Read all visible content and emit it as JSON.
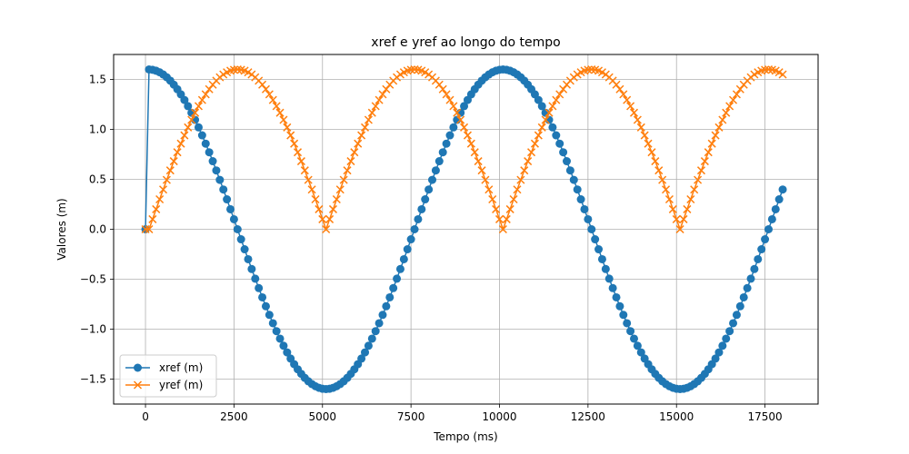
{
  "chart_data": {
    "type": "line",
    "title": "xref e yref ao longo do tempo",
    "xlabel": "Tempo (ms)",
    "ylabel": "Valores (m)",
    "xlim": [
      -900,
      19000
    ],
    "ylim": [
      -1.75,
      1.75
    ],
    "xticks": [
      0,
      2500,
      5000,
      7500,
      10000,
      12500,
      15000,
      17500
    ],
    "xtick_labels": [
      "0",
      "2500",
      "5000",
      "7500",
      "10000",
      "12500",
      "15000",
      "17500"
    ],
    "yticks": [
      -1.5,
      -1.0,
      -0.5,
      0.0,
      0.5,
      1.0,
      1.5
    ],
    "ytick_labels": [
      "−1.5",
      "−1.0",
      "−0.5",
      "0.0",
      "0.5",
      "1.0",
      "1.5"
    ],
    "grid": true,
    "legend_position": "lower-left",
    "series": [
      {
        "name": "xref (m)",
        "color": "#1f77b4",
        "marker": "circle",
        "generator": "xref"
      },
      {
        "name": "yref (m)",
        "color": "#ff7f0e",
        "marker": "x",
        "generator": "yref"
      }
    ],
    "sampling": {
      "t_start": 0,
      "t_end": 18000,
      "step": 100
    },
    "signal": {
      "amplitude": 1.6,
      "period_ms": 10000,
      "phase_start_ms": 100
    }
  }
}
